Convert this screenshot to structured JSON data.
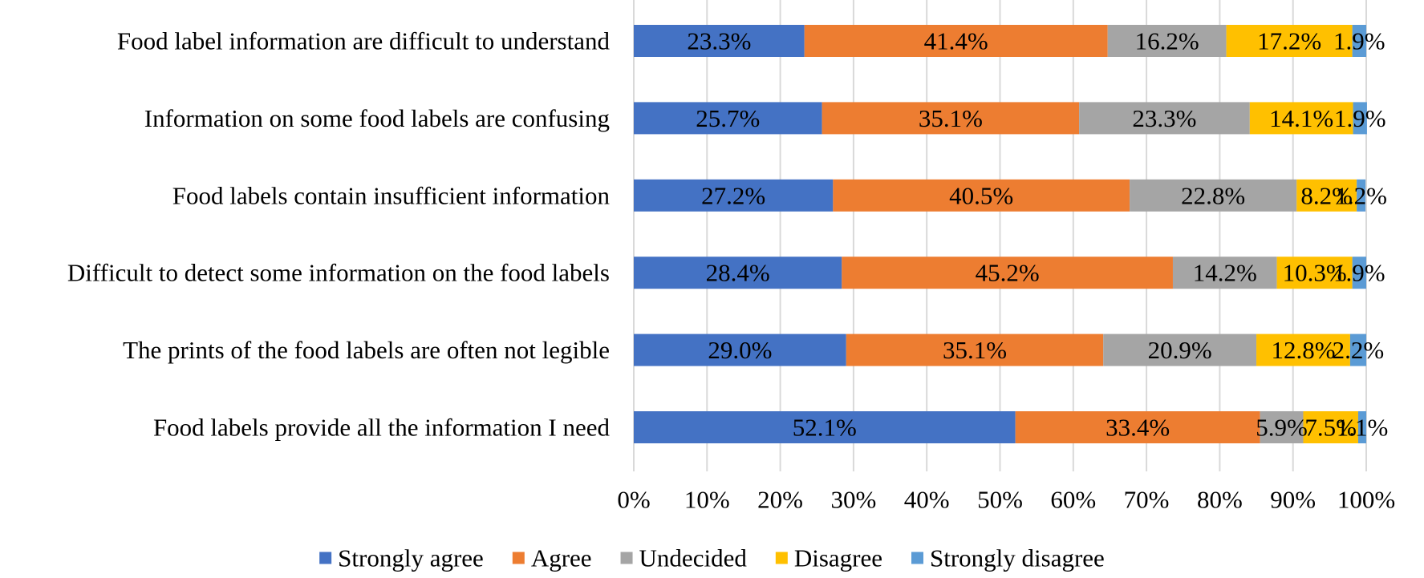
{
  "chart_data": {
    "type": "bar",
    "orientation": "horizontal",
    "stacked": true,
    "percent_stacked": true,
    "title": "",
    "xlabel": "",
    "ylabel": "",
    "xlim": [
      0,
      100
    ],
    "x_ticks": [
      "0%",
      "10%",
      "20%",
      "30%",
      "40%",
      "50%",
      "60%",
      "70%",
      "80%",
      "90%",
      "100%"
    ],
    "grid": true,
    "legend_position": "bottom",
    "categories": [
      "Food label information are difficult to understand",
      "Information on some food labels are confusing",
      "Food labels contain insufficient information",
      "Difficult to detect some information on the food labels",
      "The prints of the food labels are often not legible",
      "Food labels provide all the information I need"
    ],
    "series": [
      {
        "name": "Strongly agree",
        "color": "#4472C4",
        "values": [
          23.3,
          25.7,
          27.2,
          28.4,
          29.0,
          52.1
        ]
      },
      {
        "name": "Agree",
        "color": "#ED7D31",
        "values": [
          41.4,
          35.1,
          40.5,
          45.2,
          35.1,
          33.4
        ]
      },
      {
        "name": "Undecided",
        "color": "#A5A5A5",
        "values": [
          16.2,
          23.3,
          22.8,
          14.2,
          20.9,
          5.9
        ]
      },
      {
        "name": "Disagree",
        "color": "#FFC000",
        "values": [
          17.2,
          14.1,
          8.2,
          10.3,
          12.8,
          7.5
        ]
      },
      {
        "name": "Strongly disagree",
        "color": "#5B9BD5",
        "values": [
          1.9,
          1.9,
          1.2,
          1.9,
          2.2,
          1.1
        ]
      }
    ],
    "data_labels": [
      [
        "23.3%",
        "41.4%",
        "16.2%",
        "17.2%",
        "1.9%"
      ],
      [
        "25.7%",
        "35.1%",
        "23.3%",
        "14.1%",
        "1.9%"
      ],
      [
        "27.2%",
        "40.5%",
        "22.8%",
        "8.2%",
        "1.2%"
      ],
      [
        "28.4%",
        "45.2%",
        "14.2%",
        "10.3%",
        "1.9%"
      ],
      [
        "29.0%",
        "35.1%",
        "20.9%",
        "12.8%",
        "2.2%"
      ],
      [
        "52.1%",
        "33.4%",
        "5.9%",
        "7.5%",
        "1.1%"
      ]
    ]
  }
}
